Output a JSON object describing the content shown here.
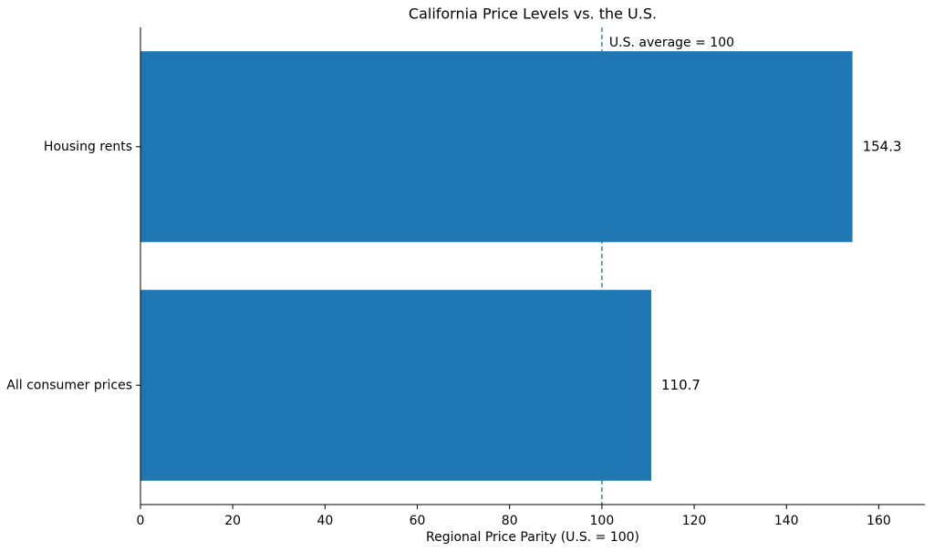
{
  "chart_data": {
    "type": "barh",
    "title": "California Price Levels vs. the U.S.",
    "xlabel": "Regional Price Parity (U.S. = 100)",
    "categories": [
      "Housing rents",
      "All consumer prices"
    ],
    "values": [
      154.3,
      110.7
    ],
    "color": "#1f77b4",
    "xlim": [
      0,
      170
    ],
    "xticks": [
      0,
      20,
      40,
      60,
      80,
      100,
      120,
      140,
      160
    ],
    "reference_line": {
      "value": 100,
      "label": "U.S. average = 100",
      "color": "#1f77b4"
    }
  }
}
